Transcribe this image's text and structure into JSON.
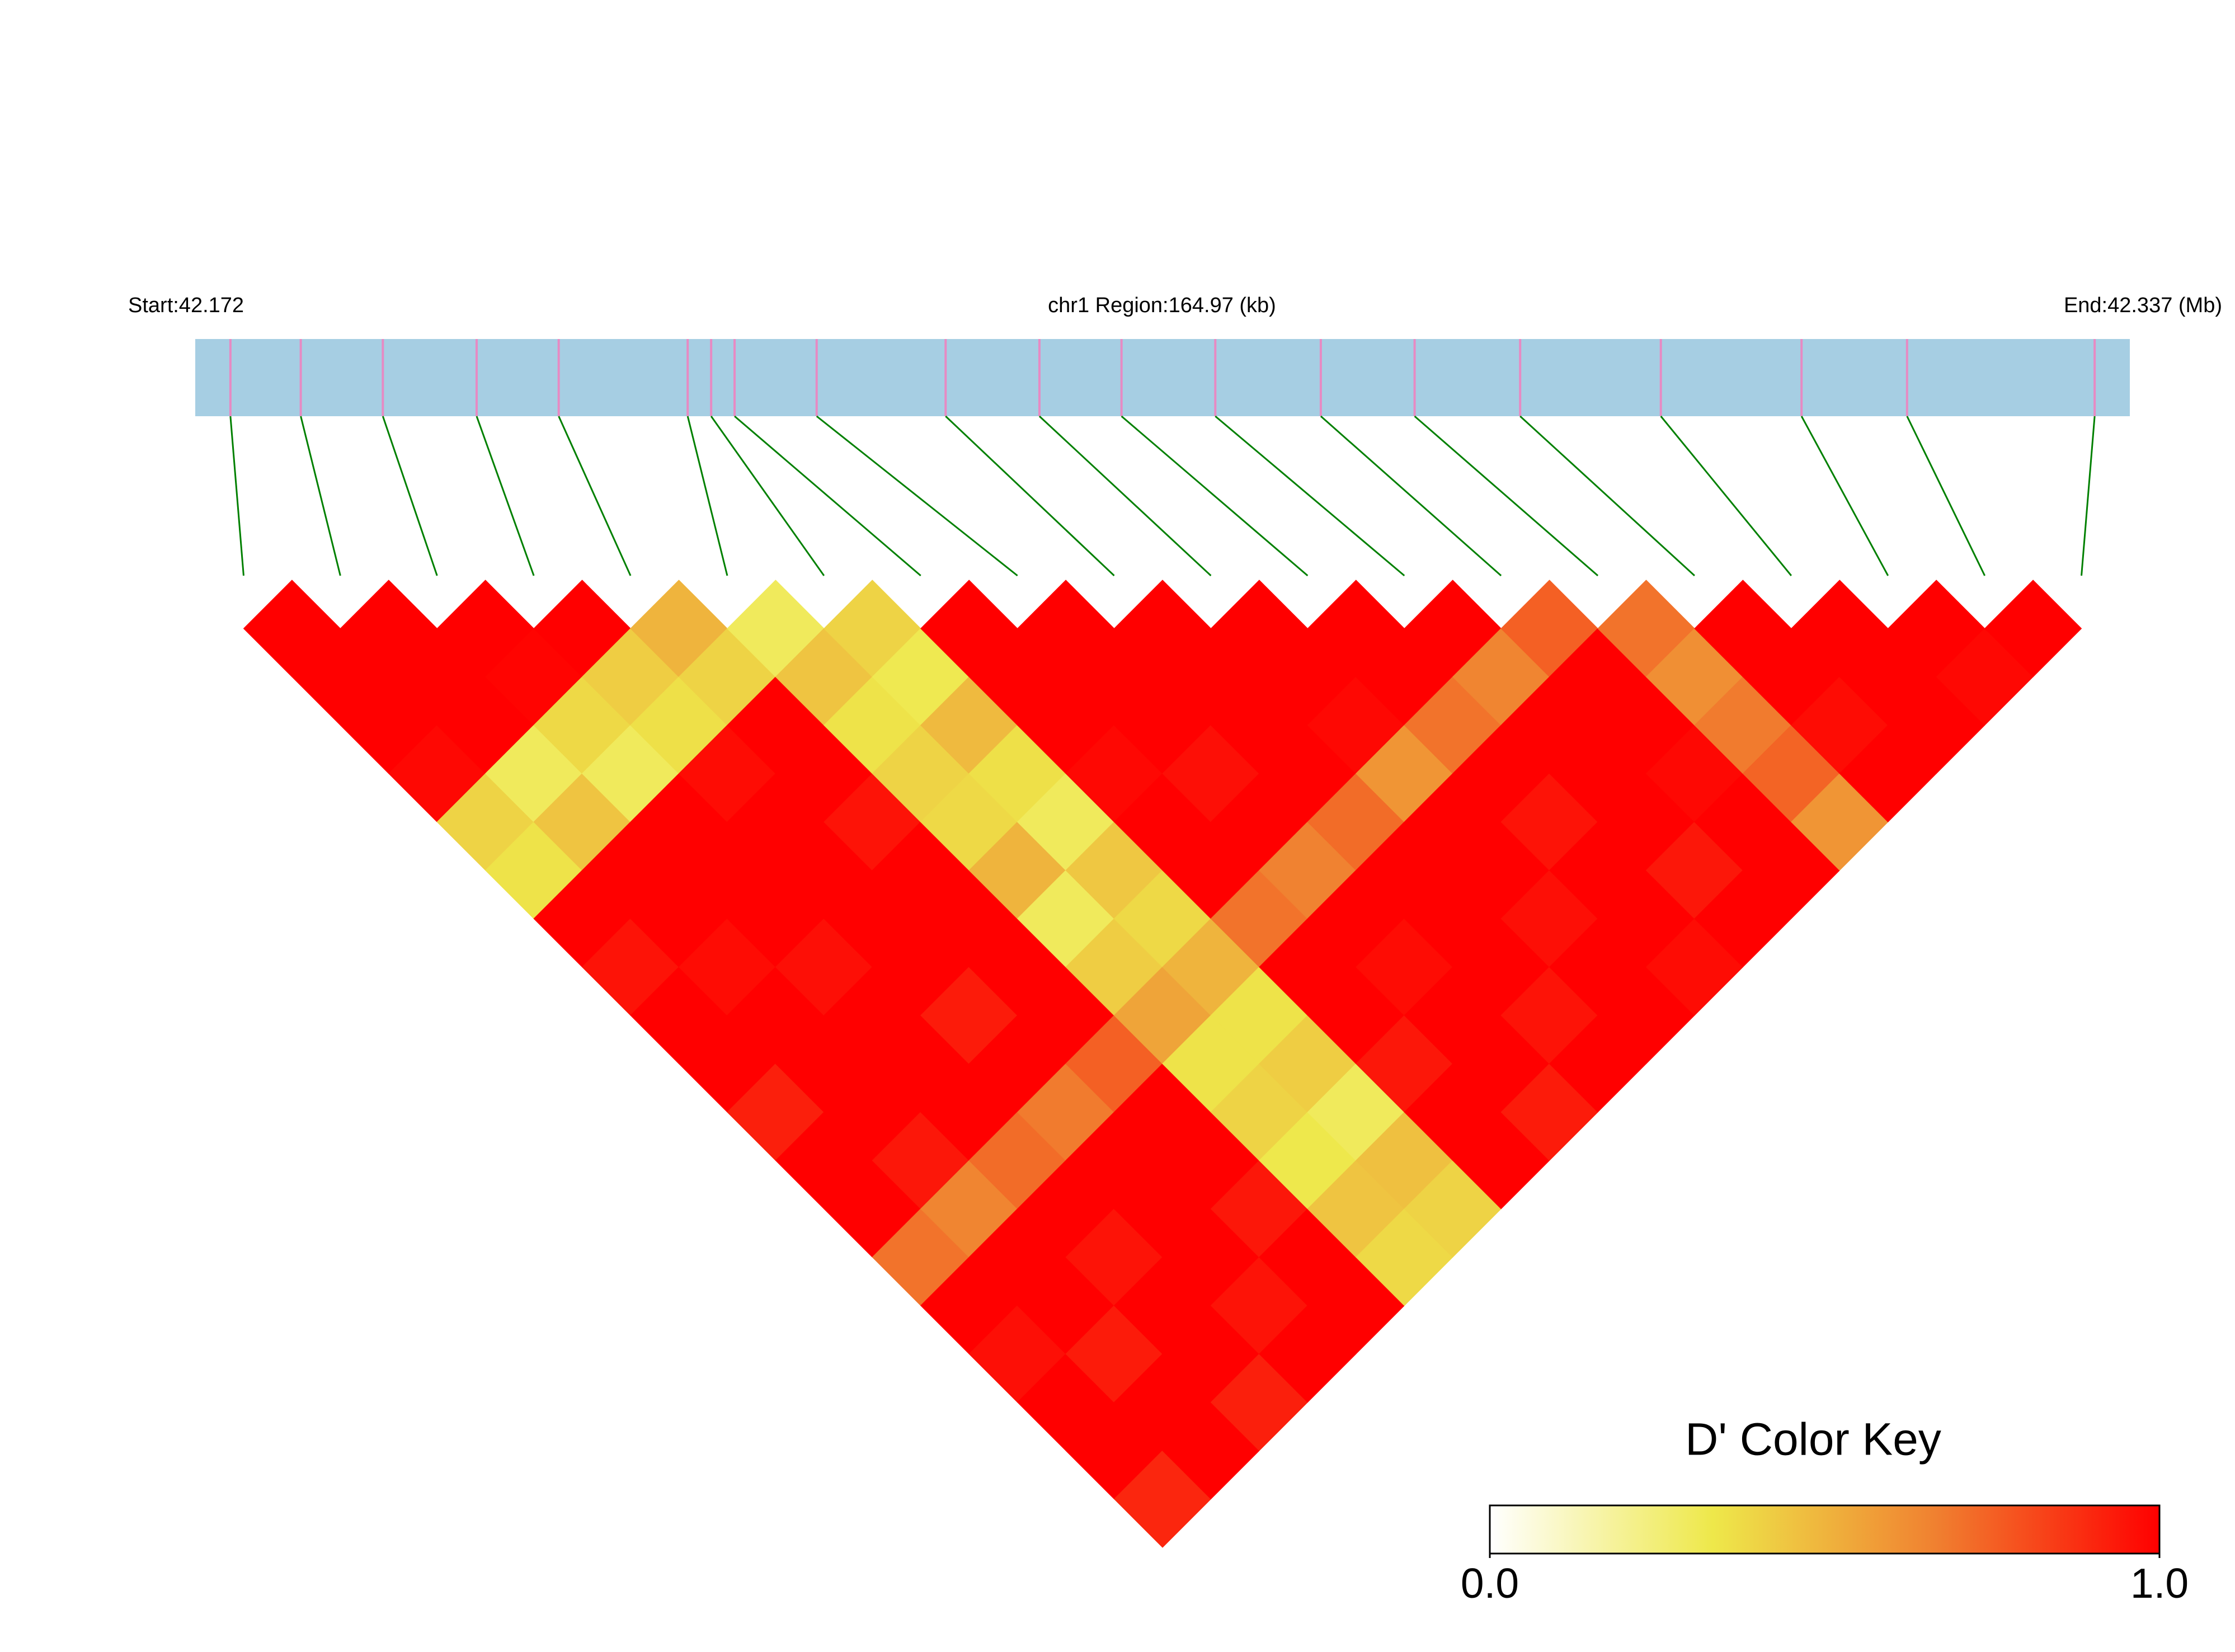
{
  "chart_data": {
    "type": "ld-heatmap",
    "start_label": "Start:42.172",
    "region_label": "chr1 Region:164.97 (kb)",
    "end_label": "End:42.337 (Mb)",
    "snp_positions": [
      42.175,
      42.181,
      42.188,
      42.196,
      42.203,
      42.214,
      42.216,
      42.218,
      42.225,
      42.236,
      42.244,
      42.251,
      42.259,
      42.268,
      42.276,
      42.285,
      42.297,
      42.309,
      42.318,
      42.334
    ],
    "xlim": [
      42.172,
      42.337
    ],
    "d_prime": [
      [
        1,
        1,
        1,
        0.98,
        0.4,
        0.35,
        1,
        0.95,
        1,
        1,
        0.92,
        1,
        1,
        0.7,
        1,
        0.96,
        1,
        1,
        0.9
      ],
      [
        1,
        1,
        1,
        0.3,
        0.45,
        1,
        1,
        0.97,
        1,
        1,
        1,
        0.94,
        0.65,
        1,
        1,
        0.93,
        1,
        1
      ],
      [
        1,
        0.99,
        0.38,
        0.3,
        1,
        1,
        1,
        0.96,
        1,
        1,
        1,
        0.72,
        1,
        0.95,
        1,
        1,
        0.92
      ],
      [
        1,
        0.42,
        0.36,
        0.97,
        1,
        1,
        1,
        1,
        0.93,
        1,
        0.68,
        1,
        1,
        1,
        0.95,
        1
      ],
      [
        0.5,
        0.4,
        1,
        1,
        0.95,
        1,
        1,
        1,
        1,
        0.75,
        1,
        1,
        0.94,
        1,
        1
      ],
      [
        0.3,
        0.45,
        0.35,
        0.4,
        0.38,
        0.5,
        0.3,
        0.42,
        0.55,
        0.35,
        0.4,
        0.33,
        0.45,
        0.38
      ],
      [
        0.4,
        0.32,
        0.48,
        0.36,
        0.3,
        0.44,
        0.38,
        0.5,
        0.35,
        0.42,
        0.3,
        0.46,
        0.4
      ],
      [
        1,
        1,
        1,
        0.98,
        1,
        1,
        0.7,
        1,
        1,
        0.94,
        1,
        1
      ],
      [
        1,
        1,
        1,
        0.96,
        1,
        0.66,
        1,
        0.97,
        1,
        1,
        0.93
      ],
      [
        1,
        1,
        1,
        1,
        0.72,
        1,
        1,
        1,
        0.95,
        1
      ],
      [
        1,
        1,
        0.98,
        0.6,
        1,
        1,
        0.96,
        1,
        1
      ],
      [
        1,
        1,
        0.7,
        1,
        0.95,
        1,
        1,
        0.97
      ],
      [
        1,
        0.65,
        1,
        1,
        1,
        0.94,
        1
      ],
      [
        0.75,
        1,
        1,
        0.98,
        1,
        1
      ],
      [
        0.7,
        0.62,
        0.68,
        0.74,
        0.6
      ],
      [
        1,
        1,
        0.97,
        1
      ],
      [
        1,
        1,
        1
      ],
      [
        1,
        0.98
      ],
      [
        1
      ]
    ],
    "colors": [
      "#ffffff",
      "#eee84a",
      "#f08030",
      "#ff0000"
    ],
    "bar_color": "#a6cee3",
    "snp_color": "#e78ac3",
    "link_color": "#008000",
    "key_title": "D' Color Key",
    "clim": [
      0,
      1
    ],
    "key_ticks": [
      {
        "value": 0,
        "label": "0.0"
      },
      {
        "value": 1,
        "label": "1.0"
      }
    ]
  }
}
